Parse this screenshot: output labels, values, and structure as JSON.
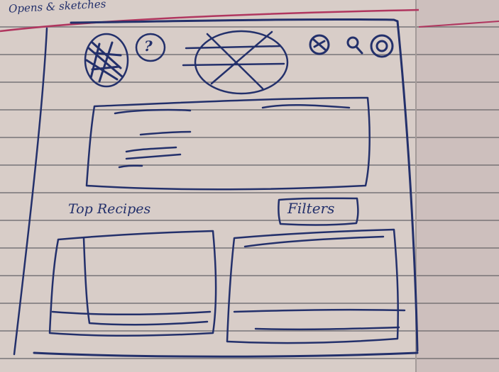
{
  "header_note": "Opens & sketches",
  "help_icon": "?",
  "section_title": "Top Recipes",
  "filters_button": "Filters",
  "icons": [
    "menu-icon",
    "help-icon",
    "hero-image-placeholder",
    "profile-icon",
    "search-icon",
    "settings-icon"
  ],
  "colors": {
    "ink": "#23306b",
    "paper": "#d8cdc8",
    "margin_line": "#b0365f"
  }
}
